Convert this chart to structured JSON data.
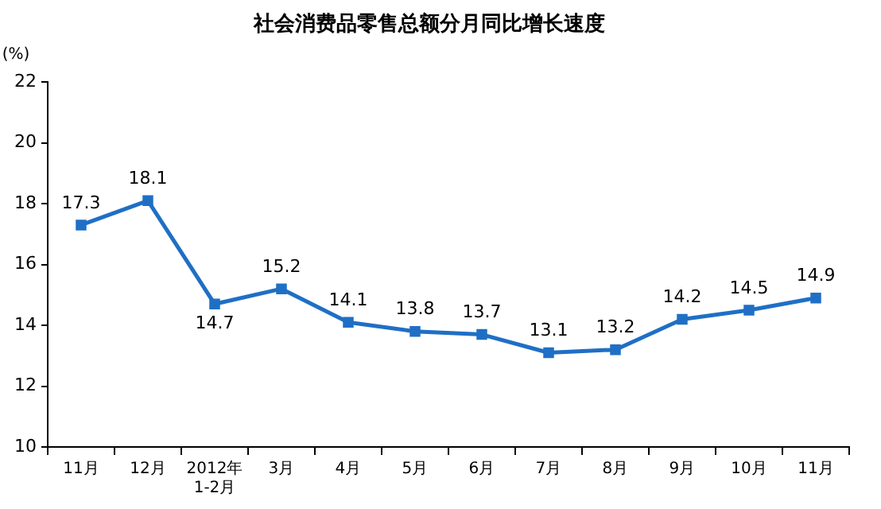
{
  "chart_data": {
    "type": "line",
    "title": "社会消费品零售总额分月同比增长速度",
    "ylabel": "(%)",
    "categories": [
      "11月",
      "12月",
      "2012年\n1-2月",
      "3月",
      "4月",
      "5月",
      "6月",
      "7月",
      "8月",
      "9月",
      "10月",
      "11月"
    ],
    "series": [
      {
        "color": "#1f6fc5",
        "values": [
          17.3,
          18.1,
          14.7,
          15.2,
          14.1,
          13.8,
          13.7,
          13.1,
          13.2,
          14.2,
          14.5,
          14.9
        ]
      }
    ],
    "ylim": [
      10,
      22
    ],
    "yticks": [
      10,
      12,
      14,
      16,
      18,
      20,
      22
    ],
    "grid": false,
    "legend": false,
    "marker": "square",
    "line_style": "solid",
    "data_labels": true
  }
}
